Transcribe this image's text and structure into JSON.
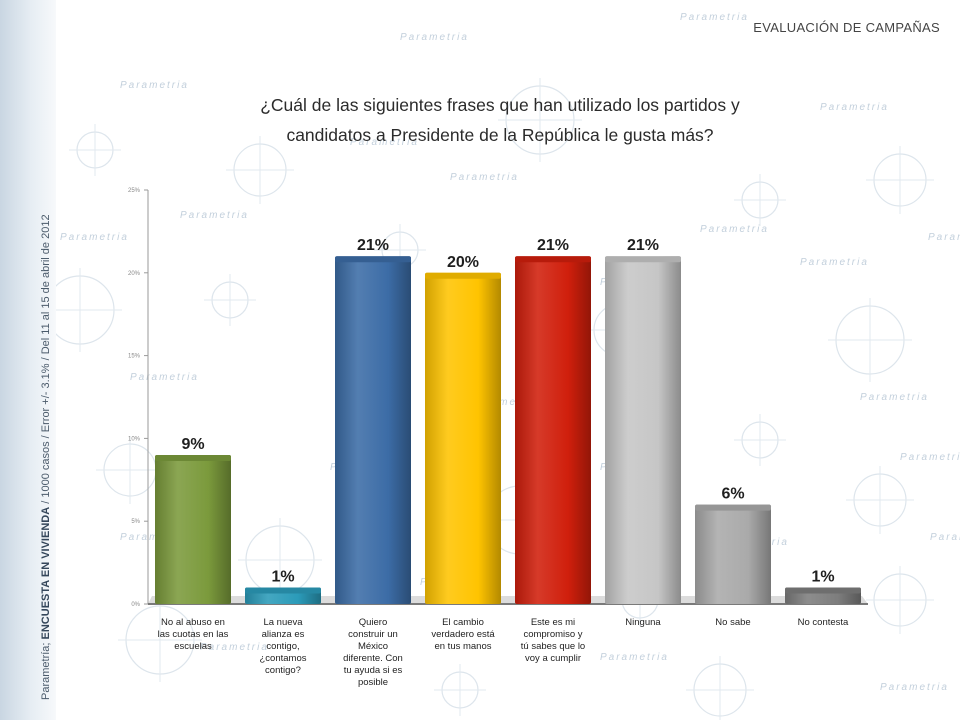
{
  "header": {
    "section_title": "EVALUACIÓN DE CAMPAÑAS",
    "question_line1": "¿Cuál de las siguientes frases que han utilizado los partidos y",
    "question_line2": "candidatos a Presidente de la República le gusta más?"
  },
  "side_caption": {
    "prefix": "Parametría;",
    "bold": "ENCUESTA EN VIVIENDA",
    "suffix": "/ 1000 casos / Error +/- 3.1% / Del 11 al 15 de abril de 2012"
  },
  "watermark": {
    "text": "Parametria"
  },
  "chart_data": {
    "type": "bar",
    "categories": [
      "No al abuso en las cuotas en las escuelas",
      "La nueva alianza es contigo, ¿contamos contigo?",
      "Quiero construir un México diferente. Con tu ayuda si es posible",
      "El cambio verdadero está en tus manos",
      "Este es mi compromiso y tú sabes que lo voy a cumplir",
      "Ninguna",
      "No sabe",
      "No contesta"
    ],
    "category_lines": [
      [
        "No al abuso en",
        "las cuotas en las",
        "escuelas"
      ],
      [
        "La nueva",
        "alianza es",
        "contigo,",
        "¿contamos",
        "contigo?"
      ],
      [
        "Quiero",
        "construir un",
        "México",
        "diferente. Con",
        "tu ayuda si es",
        "posible"
      ],
      [
        "El cambio",
        "verdadero está",
        "en tus manos"
      ],
      [
        "Este es mi",
        "compromiso y",
        "tú sabes que lo",
        "voy a cumplir"
      ],
      [
        "Ninguna"
      ],
      [
        "No sabe"
      ],
      [
        "No contesta"
      ]
    ],
    "values": [
      9,
      1,
      21,
      20,
      21,
      21,
      6,
      1
    ],
    "data_labels": [
      "9%",
      "1%",
      "21%",
      "20%",
      "21%",
      "21%",
      "6%",
      "1%"
    ],
    "colors": [
      "#7b9a3c",
      "#2b9bb9",
      "#3c6ca6",
      "#ffc400",
      "#d01f0c",
      "#c6c6c6",
      "#aaaaaa",
      "#7d7d7d"
    ],
    "ylim": [
      0,
      25
    ],
    "yticks": [
      0,
      5,
      10,
      15,
      20,
      25
    ],
    "ytick_labels": [
      "0%",
      "5%",
      "10%",
      "15%",
      "20%",
      "25%"
    ],
    "xlabel": "",
    "ylabel": "",
    "grid": false,
    "legend": "none"
  }
}
